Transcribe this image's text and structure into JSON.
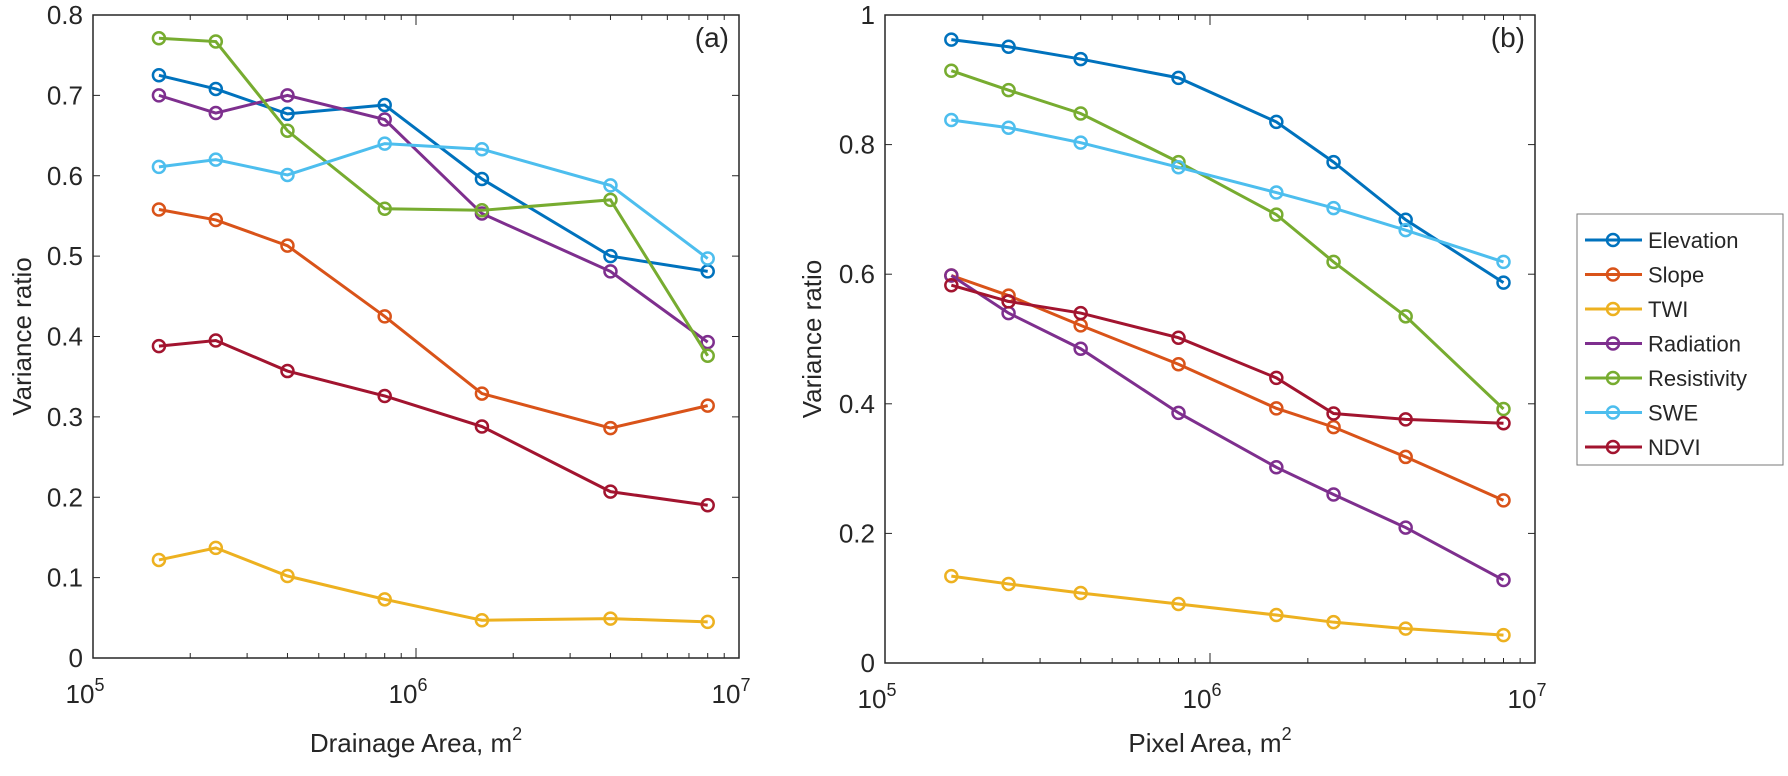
{
  "chart_data": [
    {
      "type": "line",
      "panel_label": "(a)",
      "xlabel": "Drainage Area, m",
      "xlabel_sup": "2",
      "ylabel": "Variance ratio",
      "xscale": "log",
      "xlim": [
        100000,
        10000000
      ],
      "ylim": [
        0,
        0.8
      ],
      "yticks": [
        0,
        0.1,
        0.2,
        0.3,
        0.4,
        0.5,
        0.6,
        0.7,
        0.8
      ],
      "ytick_labels": [
        "0",
        "0.1",
        "0.2",
        "0.3",
        "0.4",
        "0.5",
        "0.6",
        "0.7",
        "0.8"
      ],
      "xtick_labels": [
        {
          "base": "10",
          "exp": "5"
        },
        {
          "base": "10",
          "exp": "6"
        },
        {
          "base": "10",
          "exp": "7"
        }
      ],
      "x": [
        160000,
        240000,
        400000,
        800000,
        1600000,
        4000000,
        8000000
      ],
      "series": [
        {
          "name": "Elevation",
          "color": "#0072BD",
          "values": [
            0.725,
            0.708,
            0.677,
            0.688,
            0.596,
            0.5,
            0.481
          ]
        },
        {
          "name": "Slope",
          "color": "#D95319",
          "values": [
            0.558,
            0.545,
            0.513,
            0.425,
            0.329,
            0.286,
            0.314
          ]
        },
        {
          "name": "TWI",
          "color": "#EDB120",
          "values": [
            0.122,
            0.137,
            0.102,
            0.073,
            0.047,
            0.049,
            0.045
          ]
        },
        {
          "name": "Radiation",
          "color": "#7E2F8E",
          "values": [
            0.7,
            0.678,
            0.7,
            0.67,
            0.553,
            0.481,
            0.393
          ]
        },
        {
          "name": "Resistivity",
          "color": "#77AC30",
          "values": [
            0.771,
            0.767,
            0.656,
            0.559,
            0.557,
            0.57,
            0.376
          ]
        },
        {
          "name": "SWE",
          "color": "#4DBEEE",
          "values": [
            0.611,
            0.62,
            0.601,
            0.64,
            0.633,
            0.588,
            0.497
          ]
        },
        {
          "name": "NDVI",
          "color": "#A2142F",
          "values": [
            0.388,
            0.395,
            0.357,
            0.326,
            0.288,
            0.207,
            0.19
          ]
        }
      ],
      "grid": false,
      "legend": "none"
    },
    {
      "type": "line",
      "panel_label": "(b)",
      "xlabel": "Pixel Area, m",
      "xlabel_sup": "2",
      "ylabel": "Variance ratio",
      "xscale": "log",
      "xlim": [
        100000,
        10000000
      ],
      "ylim": [
        0,
        1
      ],
      "yticks": [
        0,
        0.2,
        0.4,
        0.6,
        0.8,
        1
      ],
      "ytick_labels": [
        "0",
        "0.2",
        "0.4",
        "0.6",
        "0.8",
        "1"
      ],
      "xtick_labels": [
        {
          "base": "10",
          "exp": "5"
        },
        {
          "base": "10",
          "exp": "6"
        },
        {
          "base": "10",
          "exp": "7"
        }
      ],
      "x": [
        160000,
        240000,
        400000,
        800000,
        1600000,
        2400000,
        4000000,
        8000000
      ],
      "series": [
        {
          "name": "Elevation",
          "color": "#0072BD",
          "values": [
            0.962,
            0.951,
            0.932,
            0.903,
            0.835,
            0.773,
            0.684,
            0.587
          ]
        },
        {
          "name": "Slope",
          "color": "#D95319",
          "values": [
            0.598,
            0.567,
            0.521,
            0.461,
            0.393,
            0.364,
            0.318,
            0.251
          ]
        },
        {
          "name": "TWI",
          "color": "#EDB120",
          "values": [
            0.134,
            0.122,
            0.108,
            0.091,
            0.074,
            0.063,
            0.053,
            0.043
          ]
        },
        {
          "name": "Radiation",
          "color": "#7E2F8E",
          "values": [
            0.598,
            0.54,
            0.485,
            0.386,
            0.302,
            0.26,
            0.209,
            0.128
          ]
        },
        {
          "name": "Resistivity",
          "color": "#77AC30",
          "values": [
            0.914,
            0.884,
            0.848,
            0.773,
            0.692,
            0.619,
            0.535,
            0.392
          ]
        },
        {
          "name": "SWE",
          "color": "#4DBEEE",
          "values": [
            0.838,
            0.826,
            0.803,
            0.765,
            0.726,
            0.702,
            0.668,
            0.619
          ]
        },
        {
          "name": "NDVI",
          "color": "#A2142F",
          "values": [
            0.583,
            0.558,
            0.54,
            0.502,
            0.44,
            0.385,
            0.376,
            0.37
          ]
        }
      ],
      "grid": false,
      "legend": "outside-right"
    }
  ]
}
